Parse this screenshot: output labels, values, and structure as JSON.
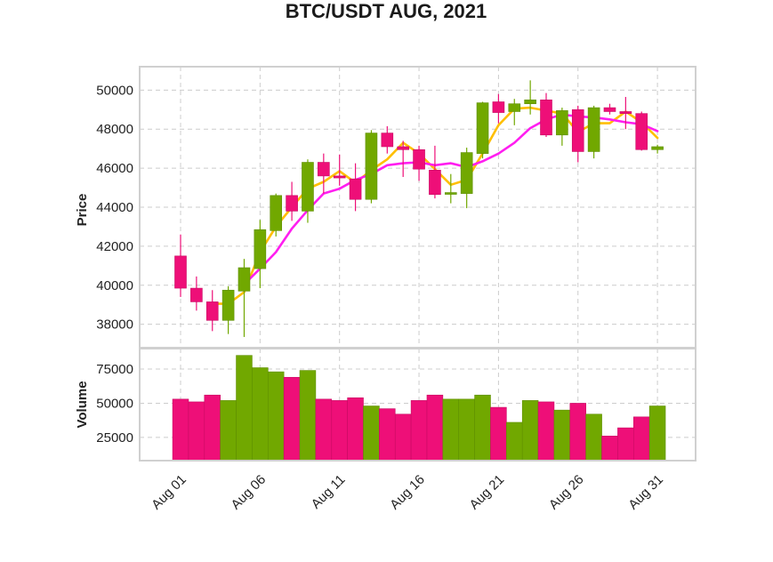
{
  "chart_data": {
    "type": "candlestick",
    "title": "BTC/USDT AUG, 2021",
    "price_panel": {
      "ylabel": "Price",
      "ylim": [
        36800,
        51200
      ],
      "yticks": [
        38000,
        40000,
        42000,
        44000,
        46000,
        48000,
        50000
      ],
      "up_color": "#71a800",
      "down_color": "#ee0f78",
      "ma_series": [
        {
          "color": "#ffbf00",
          "values": [
            null,
            null,
            39050,
            39050,
            39650,
            41700,
            43000,
            44000,
            44950,
            45300,
            45850,
            45250,
            45900,
            46450,
            47300,
            46750,
            45950,
            45150,
            45400,
            46750,
            48200,
            49050,
            49100,
            48950,
            48800,
            47850,
            48300,
            48300,
            48900,
            48350,
            47550
          ]
        },
        {
          "color": "#ff1ef0",
          "values": [
            null,
            null,
            null,
            null,
            40050,
            40850,
            41700,
            42900,
            43850,
            44700,
            44950,
            45400,
            45700,
            46150,
            46250,
            46300,
            46150,
            46250,
            46050,
            46350,
            46750,
            47300,
            48050,
            48500,
            48750,
            48650,
            48600,
            48500,
            48350,
            48250,
            47900
          ]
        }
      ]
    },
    "volume_panel": {
      "ylabel": "Volume",
      "ylim": [
        8000,
        90000
      ],
      "yticks": [
        25000,
        50000,
        75000
      ]
    },
    "x": [
      "Aug 01",
      "Aug 02",
      "Aug 03",
      "Aug 04",
      "Aug 05",
      "Aug 06",
      "Aug 07",
      "Aug 08",
      "Aug 09",
      "Aug 10",
      "Aug 11",
      "Aug 12",
      "Aug 13",
      "Aug 14",
      "Aug 15",
      "Aug 16",
      "Aug 17",
      "Aug 18",
      "Aug 19",
      "Aug 20",
      "Aug 21",
      "Aug 22",
      "Aug 23",
      "Aug 24",
      "Aug 25",
      "Aug 26",
      "Aug 27",
      "Aug 28",
      "Aug 29",
      "Aug 30",
      "Aug 31"
    ],
    "xticks": [
      "Aug 01",
      "Aug 06",
      "Aug 11",
      "Aug 16",
      "Aug 21",
      "Aug 26",
      "Aug 31"
    ],
    "xtick_index": [
      0,
      5,
      10,
      15,
      20,
      25,
      30
    ],
    "ohlc": [
      [
        41500,
        42600,
        39400,
        39850
      ],
      [
        39850,
        40450,
        38700,
        39150
      ],
      [
        39150,
        39750,
        37650,
        38200
      ],
      [
        38200,
        39950,
        37500,
        39750
      ],
      [
        39700,
        41350,
        37350,
        40900
      ],
      [
        40850,
        43350,
        39850,
        42850
      ],
      [
        42800,
        44700,
        42500,
        44600
      ],
      [
        44600,
        45300,
        43300,
        43800
      ],
      [
        43800,
        46450,
        43200,
        46300
      ],
      [
        46300,
        46750,
        44700,
        45600
      ],
      [
        45600,
        46700,
        45100,
        45500
      ],
      [
        45450,
        46250,
        43800,
        44400
      ],
      [
        44400,
        47950,
        44200,
        47800
      ],
      [
        47800,
        48150,
        46750,
        47100
      ],
      [
        47100,
        47400,
        45550,
        46950
      ],
      [
        46950,
        47150,
        45350,
        45950
      ],
      [
        45900,
        47150,
        44450,
        44650
      ],
      [
        44700,
        45700,
        44200,
        44750
      ],
      [
        44700,
        47050,
        43950,
        46800
      ],
      [
        46750,
        49400,
        46500,
        49350
      ],
      [
        49400,
        49800,
        48300,
        48850
      ],
      [
        48900,
        49550,
        48200,
        49300
      ],
      [
        49300,
        50500,
        48750,
        49500
      ],
      [
        49500,
        49850,
        47600,
        47700
      ],
      [
        47700,
        49100,
        47150,
        48950
      ],
      [
        49000,
        49200,
        46300,
        46850
      ],
      [
        46850,
        49200,
        46500,
        49100
      ],
      [
        49100,
        49300,
        48750,
        48900
      ],
      [
        48900,
        49650,
        48000,
        48800
      ],
      [
        48800,
        48900,
        46900,
        46950
      ],
      [
        46950,
        47200,
        46750,
        47100
      ]
    ],
    "volume": [
      53000,
      51000,
      56000,
      52000,
      85000,
      76000,
      73000,
      69000,
      74000,
      53000,
      52000,
      54000,
      48000,
      46000,
      42000,
      52000,
      56000,
      53000,
      53000,
      56000,
      47000,
      36000,
      52000,
      51000,
      45000,
      50000,
      42000,
      26000,
      32000,
      40000,
      48000
    ]
  }
}
